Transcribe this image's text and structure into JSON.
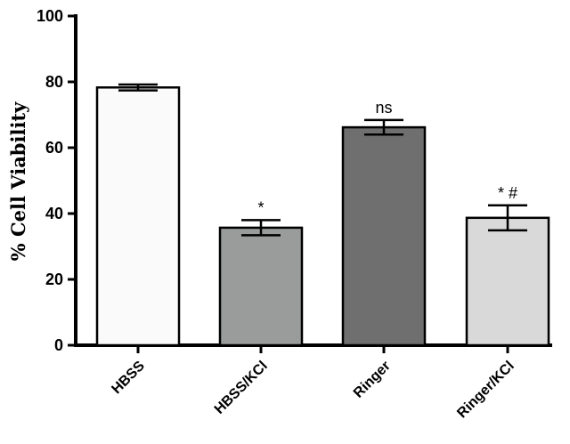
{
  "chart_data": {
    "type": "bar",
    "title": "",
    "xlabel": "",
    "ylabel": "% Cell Viability",
    "ylim": [
      0,
      100
    ],
    "yticks": [
      0,
      20,
      40,
      60,
      80,
      100
    ],
    "grid": false,
    "categories": [
      "HBSS",
      "HBSS/KCl",
      "Ringer",
      "Ringer/KCl"
    ],
    "values": [
      78.3,
      35.7,
      66.2,
      38.7
    ],
    "errors": [
      0.9,
      2.3,
      2.2,
      3.8
    ],
    "annotations": [
      "",
      "*",
      "ns",
      "* #"
    ],
    "colors": [
      "#fafafa",
      "#999c9a",
      "#6e6f6e",
      "#d9d9d9"
    ]
  }
}
